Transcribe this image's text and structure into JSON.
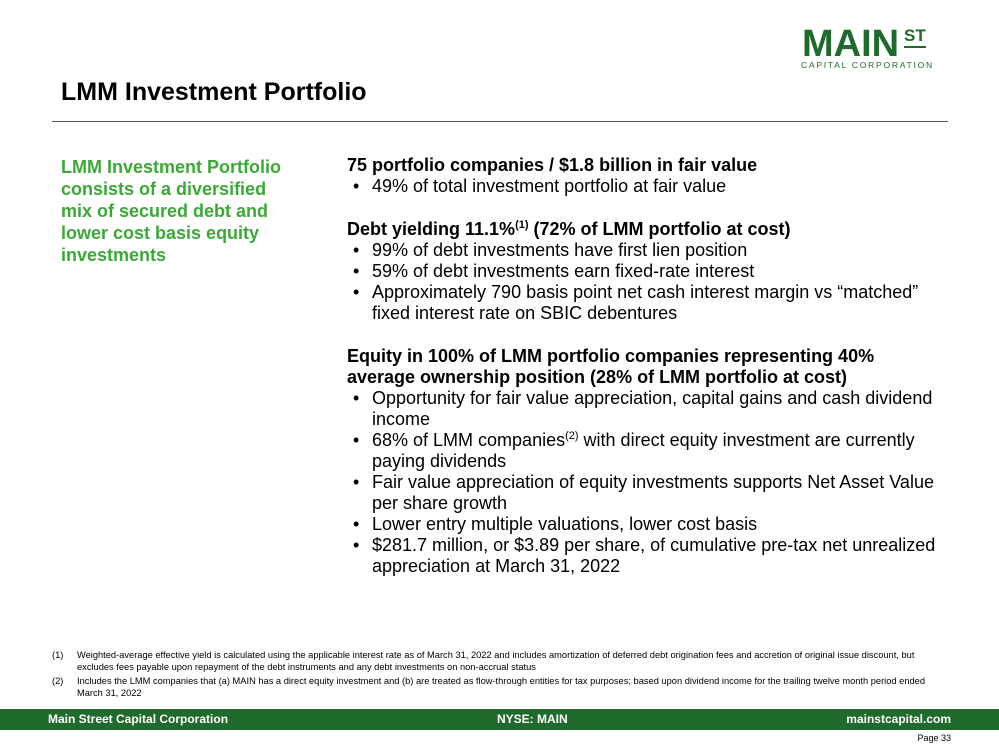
{
  "logo": {
    "main": "MAIN",
    "st": "ST",
    "sub": "CAPITAL CORPORATION"
  },
  "title": "LMM Investment Portfolio",
  "sidebar": "LMM Investment Portfolio consists of a diversified mix of secured debt and lower cost basis equity investments",
  "sections": [
    {
      "head": "75 portfolio companies / $1.8 billion in fair value",
      "bullets": [
        "49% of total investment portfolio at fair value"
      ]
    },
    {
      "head_pre": "Debt yielding 11.1%",
      "head_sup": "(1)",
      "head_post": " (72% of LMM portfolio at cost)",
      "bullets": [
        "99% of debt investments have first lien position",
        "59% of debt investments earn fixed-rate interest",
        "Approximately 790 basis point net cash interest margin vs “matched” fixed interest rate on SBIC debentures"
      ]
    },
    {
      "head": "Equity in 100% of LMM portfolio companies representing 40% average ownership position (28% of LMM portfolio at cost)",
      "bullets": [
        "Opportunity for fair value appreciation, capital gains and cash dividend income",
        {
          "pre": "68% of LMM companies",
          "sup": "(2)",
          "post": " with direct equity investment are currently paying dividends"
        },
        "Fair value appreciation of equity investments supports Net Asset Value per share growth",
        "Lower entry multiple valuations, lower cost basis",
        "$281.7 million, or $3.89 per share, of cumulative pre-tax net unrealized appreciation at March 31, 2022"
      ]
    }
  ],
  "footnotes": [
    {
      "num": "(1)",
      "text": "Weighted-average effective yield is calculated using the applicable interest rate as of March 31, 2022 and includes amortization of deferred debt origination fees and accretion of original issue discount, but excludes fees payable upon repayment of the debt instruments and any debt investments on non-accrual status"
    },
    {
      "num": "(2)",
      "text": "Includes the LMM companies that (a) MAIN has a direct equity investment and (b) are treated as flow-through entities for tax purposes; based upon dividend income for the trailing twelve month period ended March 31, 2022"
    }
  ],
  "footer": {
    "left": "Main Street Capital Corporation",
    "center": "NYSE: MAIN",
    "right": "mainstcapital.com"
  },
  "page": "Page  33",
  "colors": {
    "brand_green": "#1f6a2c",
    "accent_green": "#3aa935"
  }
}
